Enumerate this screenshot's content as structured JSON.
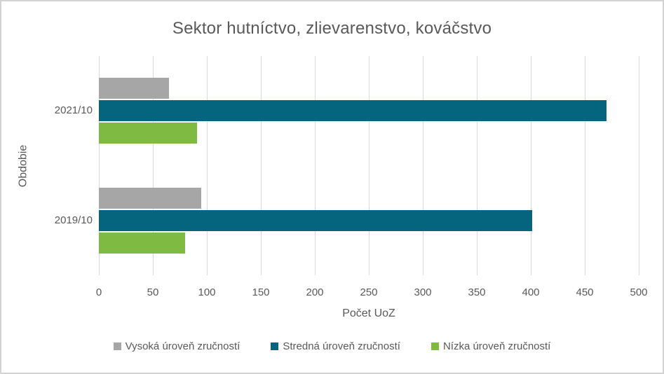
{
  "chart_data": {
    "type": "bar",
    "orientation": "horizontal",
    "title": "Sektor hutníctvo, zlievarenstvo, kováčstvo",
    "categories": [
      "2021/10",
      "2019/10"
    ],
    "series": [
      {
        "name": "Vysoká úroveň zručností",
        "color": "#a6a6a6",
        "values": [
          65,
          95
        ]
      },
      {
        "name": "Stredná úroveň zručností",
        "color": "#05647e",
        "values": [
          470,
          401
        ]
      },
      {
        "name": "Nízka úroveň zručností",
        "color": "#7fba42",
        "values": [
          91,
          80
        ]
      }
    ],
    "xlabel": "Počet UoZ",
    "ylabel": "Obdobie",
    "xlim": [
      0,
      500
    ],
    "xticks": [
      0,
      50,
      100,
      150,
      200,
      250,
      300,
      350,
      400,
      450,
      500
    ],
    "grid": "vertical",
    "legend_position": "bottom"
  },
  "colors": {
    "gridline": "#d9d9d9",
    "text": "#595959",
    "frame_border": "#d3d3d3",
    "background": "#ffffff"
  }
}
